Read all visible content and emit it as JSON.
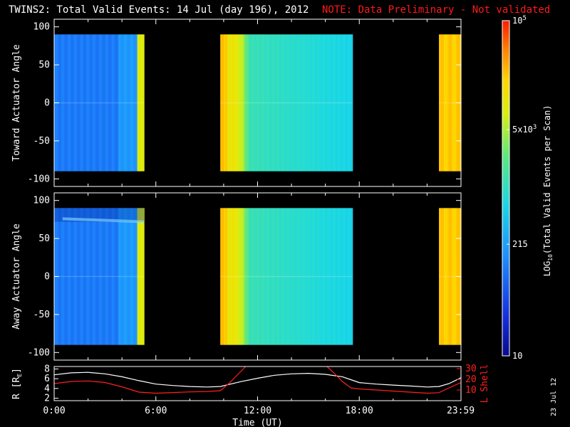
{
  "header": {
    "title": "TWINS2: Total Valid Events: 14 Jul (day 196), 2012",
    "note": "NOTE: Data Preliminary - Not validated"
  },
  "colors": {
    "note": "#ff1a1a",
    "background": "#000000",
    "l_shell_line": "#ff2020",
    "r_line": "#ffffff"
  },
  "chart_data": [
    {
      "type": "heatmap",
      "name": "toward",
      "ylabel": "Toward Actuator Angle",
      "ylim": [
        -110,
        110
      ],
      "yticks": [
        "100",
        "50",
        "0",
        "-50",
        "-100"
      ],
      "ytick_values": [
        100,
        50,
        0,
        -50,
        -100
      ],
      "xlim": [
        0,
        24
      ],
      "angle_range": [
        -90,
        90
      ],
      "segments": [
        {
          "start": 0.0,
          "end": 5.3,
          "profile": "low_rising"
        },
        {
          "start": 9.8,
          "end": 17.6,
          "profile": "high_falling"
        },
        {
          "start": 22.7,
          "end": 24.0,
          "profile": "high_flat"
        }
      ]
    },
    {
      "type": "heatmap",
      "name": "away",
      "ylabel": "Away Actuator Angle",
      "ylim": [
        -110,
        110
      ],
      "yticks": [
        "100",
        "50",
        "0",
        "-50",
        "-100"
      ],
      "ytick_values": [
        100,
        50,
        0,
        -50,
        -100
      ],
      "xlim": [
        0,
        24
      ],
      "angle_range": [
        -90,
        90
      ],
      "segments": [
        {
          "start": 0.0,
          "end": 5.3,
          "profile": "low_rising"
        },
        {
          "start": 9.8,
          "end": 17.6,
          "profile": "high_falling"
        },
        {
          "start": 22.7,
          "end": 24.0,
          "profile": "high_flat"
        }
      ]
    },
    {
      "type": "line",
      "name": "orbit",
      "ylabel_left": "R [R",
      "ylabel_left_sub": "E",
      "ylabel_left_end": "]",
      "ylabel_right": "L Shell",
      "left_ylim": [
        1.5,
        8.5
      ],
      "left_ticks": [
        "8",
        "6",
        "4",
        "2"
      ],
      "left_tick_values": [
        8,
        6,
        4,
        2
      ],
      "right_ylim": [
        0,
        32
      ],
      "right_ticks": [
        "30",
        "20",
        "10"
      ],
      "right_tick_values": [
        30,
        20,
        10
      ],
      "xlabel": "Time (UT)",
      "xlim": [
        0,
        24
      ],
      "xticks": [
        "0:00",
        "6:00",
        "12:00",
        "18:00",
        "23:59"
      ],
      "xtick_values": [
        0,
        6,
        12,
        18,
        23.98
      ],
      "series": [
        {
          "axis": "left",
          "x": [
            0,
            1,
            2,
            3,
            4,
            5,
            6,
            7,
            8,
            9,
            9.8,
            11,
            12,
            13,
            14,
            15,
            16,
            17,
            17.5,
            18,
            19,
            20,
            21,
            22,
            22.7,
            23.3,
            24
          ],
          "y": [
            6.8,
            7.2,
            7.3,
            7.0,
            6.4,
            5.6,
            4.9,
            4.6,
            4.4,
            4.3,
            4.4,
            5.4,
            6.1,
            6.7,
            7.0,
            7.1,
            6.9,
            6.4,
            5.8,
            5.2,
            4.9,
            4.7,
            4.5,
            4.3,
            4.4,
            5.0,
            6.2
          ]
        },
        {
          "axis": "right",
          "x": [
            0,
            1,
            2,
            3,
            4,
            5,
            6,
            7,
            8,
            9,
            9.8,
            10.3,
            10.8,
            11.3
          ],
          "y": [
            16,
            18,
            18.5,
            17,
            13,
            8,
            7,
            7.6,
            8.2,
            8.6,
            9.3,
            16,
            24,
            32
          ]
        },
        {
          "axis": "right",
          "x": [
            16.1,
            16.5,
            17.0,
            17.5,
            18,
            19,
            20,
            21,
            22,
            22.7,
            23.3,
            24
          ],
          "y": [
            32,
            26,
            18,
            12,
            11,
            10,
            9,
            8,
            7,
            7.5,
            12,
            17
          ]
        }
      ]
    },
    {
      "type": "colorbar",
      "label_prefix": "LOG",
      "label_sub": "10",
      "label_suffix": "(Total Valid Events per Scan)",
      "log_range": [
        1,
        5
      ],
      "ticks": [
        {
          "log": 5,
          "mant": "10",
          "exp": "5"
        },
        {
          "log": 3.699,
          "mant": "5x10",
          "exp": "3"
        },
        {
          "log": 2.332,
          "mant": "215",
          "exp": ""
        },
        {
          "log": 1,
          "mant": "10",
          "exp": ""
        }
      ]
    }
  ],
  "footer": {
    "date_stamp": "23 Jul 12"
  }
}
